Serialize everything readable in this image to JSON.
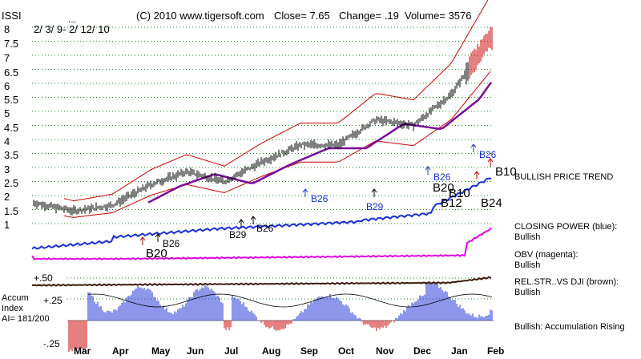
{
  "header": {
    "symbol": "ISSI",
    "dots": "...",
    "date_range": "2/ 3/ 9- 2/ 12/ 10",
    "copyright": "(C) 2010 www.tigersoft.com",
    "close": "Close=  7.65",
    "change": "Change= .19",
    "volume": "Volume= 3576"
  },
  "side_labels": {
    "bullish_price_trend": "BULLISH PRICE TREND",
    "closing_power": "CLOSING POWER (blue):",
    "closing_power_state": "Bullish",
    "obv": "OBV (magenta):",
    "obv_state": "Bullish",
    "rel_str": "REL.STR..VS DJI (brown):",
    "rel_str_state": "Bullish",
    "accum_rising": "Bullish: Accumulation Rising"
  },
  "accum": {
    "title1": "Accum",
    "title2": "Index",
    "ai": "AI= 181/200",
    "plus50": "+.50",
    "plus25": "+.25",
    "minus25": "-.25"
  },
  "signals": {
    "b26_sep": "B26",
    "b29_oct": "B29",
    "b26_dec": "B26",
    "b20_dec": "B20",
    "b10_dec": "B10",
    "b12_dec": "B12",
    "b26_jan": "B26",
    "b24_jan": "B24",
    "b10_feb": "B10",
    "b26_apr": "B26",
    "b20_apr": "B20",
    "b29_jul": "B29",
    "b26_jul": "B26"
  },
  "colors": {
    "price_bars": "#000000",
    "bands": "#cc0000",
    "moving_avg": "#7a0d9a",
    "closing_power": "#1a2fd8",
    "obv": "#e000e0",
    "rel_str": "#3a1a0a",
    "accum_pos": "#1a2fd8",
    "accum_neg": "#cc0000",
    "grid": "#1a8a1a",
    "signal_up_blue": "#1a2fd8",
    "signal_up_red": "#cc0000"
  },
  "chart_data": {
    "type": "line",
    "title": "ISSI",
    "subtitle": "2/ 3/ 9- 2/ 12/ 10",
    "x_labels": [
      "Mar",
      "Apr",
      "May",
      "Jun",
      "Jul",
      "Aug",
      "Sep",
      "Oct",
      "Nov",
      "Dec",
      "Jan",
      "Feb"
    ],
    "y_ticks": [
      1,
      1.5,
      2,
      2.5,
      3,
      3.5,
      4,
      4.5,
      5,
      5.5,
      6,
      6.5,
      7,
      7.5,
      8
    ],
    "ylim": [
      1,
      8
    ],
    "grid": true,
    "price_close_approx": [
      {
        "x": "Feb",
        "y": 1.75
      },
      {
        "x": "Mar",
        "y": 1.45
      },
      {
        "x": "Apr",
        "y": 1.65
      },
      {
        "x": "May",
        "y": 2.4
      },
      {
        "x": "Jun",
        "y": 2.85
      },
      {
        "x": "Jul",
        "y": 2.5
      },
      {
        "x": "Aug",
        "y": 3.2
      },
      {
        "x": "Sep",
        "y": 3.8
      },
      {
        "x": "Oct",
        "y": 3.8
      },
      {
        "x": "Nov",
        "y": 4.7
      },
      {
        "x": "Dec",
        "y": 4.5
      },
      {
        "x": "Jan",
        "y": 5.6
      },
      {
        "x": "Feb",
        "y": 7.65
      }
    ],
    "accum_index_ylim": [
      -0.25,
      0.5
    ],
    "accum_ticks": [
      -0.25,
      0.25,
      0.5
    ]
  }
}
